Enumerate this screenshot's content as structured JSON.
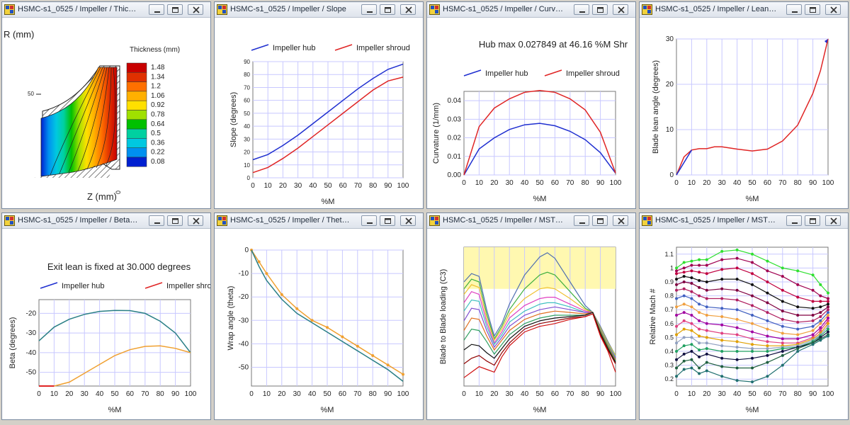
{
  "windows": [
    {
      "title": "HSMC-s1_0525 / Impeller / Thic…"
    },
    {
      "title": "HSMC-s1_0525 / Impeller / Slope"
    },
    {
      "title": "HSMC-s1_0525 / Impeller / Curv…"
    },
    {
      "title": "HSMC-s1_0525 / Impeller / Lean…"
    },
    {
      "title": "HSMC-s1_0525 / Impeller / Beta…"
    },
    {
      "title": "HSMC-s1_0525 / Impeller / Thet…"
    },
    {
      "title": "HSMC-s1_0525 / Impeller / MST…"
    },
    {
      "title": "HSMC-s1_0525 / Impeller / MST…"
    }
  ],
  "window_buttons": [
    "minimize",
    "maximize",
    "close"
  ],
  "icons": {
    "app": "impeller-app-icon",
    "minimize": "minimize-icon",
    "maximize": "maximize-icon",
    "close": "close-icon"
  },
  "colors": {
    "hub": "#1f2fd0",
    "shroud": "#e02525",
    "grid": "#c8c8ff",
    "teal": "#2a7f86",
    "orange": "#f0a030",
    "highlight": "#fff8b0"
  },
  "chart_data": [
    {
      "type": "contour",
      "title": "Thickness (mm)",
      "xlabel": "Z (mm)",
      "ylabel": "R (mm)",
      "xticks": [
        "0"
      ],
      "yticks": [
        "50"
      ],
      "legend": {
        "levels": [
          "1.48",
          "1.34",
          "1.2",
          "1.06",
          "0.92",
          "0.78",
          "0.64",
          "0.5",
          "0.36",
          "0.22",
          "0.08"
        ],
        "colors": [
          "#c80000",
          "#e03000",
          "#ff7000",
          "#ffb000",
          "#ffe000",
          "#a0e000",
          "#00c000",
          "#00d0a0",
          "#00c8e0",
          "#0090f0",
          "#0020d0"
        ]
      }
    },
    {
      "type": "line",
      "title": "",
      "xlabel": "%M",
      "ylabel": "Slope (degrees)",
      "xlim": [
        0,
        100
      ],
      "ylim": [
        0,
        90
      ],
      "xticks": [
        "0",
        "10",
        "20",
        "30",
        "40",
        "50",
        "60",
        "70",
        "80",
        "90",
        "100"
      ],
      "yticks": [
        "0",
        "10",
        "20",
        "30",
        "40",
        "50",
        "60",
        "70",
        "80",
        "90"
      ],
      "x": [
        0,
        10,
        20,
        30,
        40,
        50,
        60,
        70,
        80,
        90,
        100
      ],
      "series": [
        {
          "name": "Impeller hub",
          "values": [
            14,
            18,
            25,
            33,
            42,
            51,
            60,
            69,
            77,
            84,
            88
          ]
        },
        {
          "name": "Impeller shroud",
          "values": [
            4,
            8,
            15,
            23,
            32,
            41,
            50,
            59,
            68,
            75,
            78
          ]
        }
      ]
    },
    {
      "type": "line",
      "title": "Hub max 0.027849 at 46.16 %M  Shr",
      "xlabel": "%M",
      "ylabel": "Curvature (1/mm)",
      "xlim": [
        0,
        100
      ],
      "ylim": [
        0,
        0.045
      ],
      "xticks": [
        "0",
        "10",
        "20",
        "30",
        "40",
        "50",
        "60",
        "70",
        "80",
        "90",
        "100"
      ],
      "yticks": [
        "0.00",
        "0.01",
        "0.02",
        "0.03",
        "0.04"
      ],
      "x": [
        0,
        10,
        20,
        30,
        40,
        50,
        60,
        70,
        80,
        90,
        100
      ],
      "series": [
        {
          "name": "Impeller hub",
          "values": [
            0,
            0.014,
            0.02,
            0.0245,
            0.027,
            0.0278,
            0.0265,
            0.0235,
            0.019,
            0.012,
            0.001
          ]
        },
        {
          "name": "Impeller shroud",
          "values": [
            0,
            0.026,
            0.036,
            0.041,
            0.0445,
            0.0455,
            0.0445,
            0.041,
            0.035,
            0.023,
            0.001
          ]
        }
      ]
    },
    {
      "type": "line",
      "title": "",
      "xlabel": "%M",
      "ylabel": "Blade lean angle (degrees)",
      "xlim": [
        0,
        100
      ],
      "ylim": [
        0,
        30
      ],
      "xticks": [
        "0",
        "10",
        "20",
        "30",
        "40",
        "50",
        "60",
        "70",
        "80",
        "90",
        "100"
      ],
      "yticks": [
        "0",
        "10",
        "20",
        "30"
      ],
      "x": [
        0,
        5,
        10,
        15,
        20,
        25,
        30,
        40,
        50,
        60,
        70,
        80,
        90,
        95,
        100
      ],
      "series": [
        {
          "name": "",
          "values": [
            0,
            4,
            5.5,
            5.8,
            5.8,
            6.2,
            6.2,
            5.7,
            5.3,
            5.7,
            7.5,
            11,
            18,
            23,
            30
          ]
        }
      ]
    },
    {
      "type": "line",
      "title": "Exit lean is fixed at 30.000 degrees",
      "xlabel": "%M",
      "ylabel": "Beta (degrees)",
      "xlim": [
        0,
        100
      ],
      "ylim": [
        -57,
        -13
      ],
      "xticks": [
        "0",
        "10",
        "20",
        "30",
        "40",
        "50",
        "60",
        "70",
        "80",
        "90",
        "100"
      ],
      "yticks": [
        "-20",
        "-30",
        "-40",
        "-50"
      ],
      "x": [
        0,
        10,
        20,
        30,
        40,
        50,
        60,
        70,
        80,
        90,
        100
      ],
      "series": [
        {
          "name": "Impeller hub",
          "values": [
            -34,
            -27,
            -23,
            -20.5,
            -19,
            -18.5,
            -18.6,
            -20,
            -24,
            -30,
            -40
          ]
        },
        {
          "name": "Impeller shroud",
          "values": [
            -57,
            -57,
            -55,
            -50.5,
            -46,
            -41.5,
            -38.5,
            -36.8,
            -36.5,
            -37.8,
            -40
          ]
        }
      ]
    },
    {
      "type": "line",
      "title": "",
      "xlabel": "%M",
      "ylabel": "Wrap angle (theta)",
      "xlim": [
        0,
        100
      ],
      "ylim": [
        -58,
        0
      ],
      "xticks": [
        "0",
        "10",
        "20",
        "30",
        "40",
        "50",
        "60",
        "70",
        "80",
        "90",
        "100"
      ],
      "yticks": [
        "0",
        "-10",
        "-20",
        "-30",
        "-40",
        "-50"
      ],
      "x": [
        0,
        5,
        10,
        20,
        30,
        40,
        50,
        60,
        70,
        80,
        90,
        100
      ],
      "series": [
        {
          "name": "",
          "values": [
            0,
            -7,
            -13,
            -21,
            -27,
            -31,
            -35,
            -39,
            -43,
            -47,
            -51,
            -56
          ]
        },
        {
          "name": "",
          "values": [
            0,
            -5,
            -10,
            -19,
            -25,
            -30,
            -33,
            -37,
            -41,
            -45,
            -49,
            -53
          ]
        }
      ]
    },
    {
      "type": "line",
      "title": "",
      "xlabel": "%M",
      "ylabel": "Blade to Blade loading (C3)",
      "xlim": [
        0,
        100
      ],
      "ylim": [
        0,
        1
      ],
      "xticks": [
        "0",
        "10",
        "20",
        "30",
        "40",
        "50",
        "60",
        "70",
        "80",
        "90",
        "100"
      ],
      "yticks": [],
      "x": [
        0,
        5,
        10,
        15,
        20,
        25,
        30,
        40,
        50,
        55,
        60,
        70,
        80,
        85,
        90,
        95,
        100
      ],
      "series": [
        {
          "name": "",
          "values": [
            0.75,
            0.81,
            0.79,
            0.55,
            0.36,
            0.45,
            0.59,
            0.8,
            0.93,
            0.96,
            0.92,
            0.75,
            0.58,
            0.53,
            0.43,
            0.32,
            0.22
          ]
        },
        {
          "name": "",
          "values": [
            0.7,
            0.77,
            0.75,
            0.52,
            0.34,
            0.43,
            0.55,
            0.7,
            0.8,
            0.82,
            0.8,
            0.68,
            0.56,
            0.53,
            0.42,
            0.31,
            0.22
          ]
        },
        {
          "name": "",
          "values": [
            0.66,
            0.73,
            0.71,
            0.49,
            0.33,
            0.41,
            0.52,
            0.63,
            0.7,
            0.71,
            0.7,
            0.63,
            0.55,
            0.53,
            0.42,
            0.31,
            0.22
          ]
        },
        {
          "name": "",
          "values": [
            0.6,
            0.68,
            0.66,
            0.46,
            0.31,
            0.39,
            0.49,
            0.58,
            0.63,
            0.64,
            0.64,
            0.59,
            0.54,
            0.53,
            0.41,
            0.3,
            0.21
          ]
        },
        {
          "name": "",
          "values": [
            0.54,
            0.62,
            0.61,
            0.43,
            0.3,
            0.37,
            0.46,
            0.54,
            0.59,
            0.6,
            0.6,
            0.57,
            0.53,
            0.53,
            0.41,
            0.3,
            0.21
          ]
        },
        {
          "name": "",
          "values": [
            0.47,
            0.56,
            0.55,
            0.4,
            0.28,
            0.35,
            0.43,
            0.51,
            0.55,
            0.56,
            0.57,
            0.55,
            0.53,
            0.53,
            0.4,
            0.29,
            0.2
          ]
        },
        {
          "name": "",
          "values": [
            0.4,
            0.49,
            0.48,
            0.36,
            0.26,
            0.33,
            0.4,
            0.48,
            0.52,
            0.53,
            0.54,
            0.53,
            0.52,
            0.53,
            0.4,
            0.29,
            0.19
          ]
        },
        {
          "name": "",
          "values": [
            0.33,
            0.41,
            0.4,
            0.32,
            0.23,
            0.3,
            0.37,
            0.45,
            0.49,
            0.5,
            0.51,
            0.51,
            0.51,
            0.53,
            0.39,
            0.28,
            0.18
          ]
        },
        {
          "name": "",
          "values": [
            0.26,
            0.3,
            0.29,
            0.24,
            0.2,
            0.27,
            0.34,
            0.43,
            0.47,
            0.48,
            0.49,
            0.5,
            0.51,
            0.53,
            0.38,
            0.27,
            0.17
          ]
        },
        {
          "name": "",
          "values": [
            0.16,
            0.2,
            0.22,
            0.18,
            0.15,
            0.24,
            0.31,
            0.41,
            0.45,
            0.46,
            0.47,
            0.49,
            0.5,
            0.52,
            0.37,
            0.26,
            0.16
          ]
        },
        {
          "name": "",
          "values": [
            0.06,
            0.1,
            0.14,
            0.12,
            0.1,
            0.21,
            0.29,
            0.39,
            0.43,
            0.44,
            0.45,
            0.48,
            0.5,
            0.52,
            0.36,
            0.25,
            0.1
          ]
        }
      ]
    },
    {
      "type": "line",
      "title": "",
      "xlabel": "%M",
      "ylabel": "Relative Mach #",
      "xlim": [
        0,
        100
      ],
      "ylim": [
        0.15,
        1.15
      ],
      "xticks": [
        "0",
        "10",
        "20",
        "30",
        "40",
        "50",
        "60",
        "70",
        "80",
        "90",
        "100"
      ],
      "yticks": [
        "0.2",
        "0.3",
        "0.4",
        "0.5",
        "0.6",
        "0.7",
        "0.8",
        "0.9",
        "1",
        "1.1"
      ],
      "x": [
        0,
        5,
        10,
        15,
        20,
        30,
        40,
        50,
        60,
        70,
        80,
        90,
        95,
        100
      ],
      "series": [
        {
          "name": "",
          "values": [
            1.0,
            1.04,
            1.05,
            1.06,
            1.06,
            1.12,
            1.13,
            1.1,
            1.05,
            1.0,
            0.98,
            0.95,
            0.88,
            0.82
          ]
        },
        {
          "name": "",
          "values": [
            0.98,
            1.0,
            1.02,
            1.02,
            1.02,
            1.06,
            1.07,
            1.04,
            0.98,
            0.94,
            0.88,
            0.84,
            0.8,
            0.78
          ]
        },
        {
          "name": "",
          "values": [
            0.96,
            0.97,
            0.98,
            0.97,
            0.96,
            0.99,
            1.0,
            0.96,
            0.9,
            0.84,
            0.79,
            0.76,
            0.76,
            0.76
          ]
        },
        {
          "name": "",
          "values": [
            0.92,
            0.94,
            0.93,
            0.91,
            0.9,
            0.92,
            0.92,
            0.88,
            0.82,
            0.76,
            0.72,
            0.71,
            0.72,
            0.74
          ]
        },
        {
          "name": "",
          "values": [
            0.88,
            0.9,
            0.89,
            0.86,
            0.84,
            0.85,
            0.84,
            0.8,
            0.75,
            0.69,
            0.66,
            0.66,
            0.68,
            0.72
          ]
        },
        {
          "name": "",
          "values": [
            0.84,
            0.85,
            0.83,
            0.8,
            0.78,
            0.78,
            0.77,
            0.73,
            0.68,
            0.63,
            0.61,
            0.62,
            0.65,
            0.7
          ]
        },
        {
          "name": "",
          "values": [
            0.78,
            0.8,
            0.78,
            0.74,
            0.72,
            0.71,
            0.7,
            0.66,
            0.62,
            0.58,
            0.56,
            0.58,
            0.62,
            0.68
          ]
        },
        {
          "name": "",
          "values": [
            0.72,
            0.74,
            0.72,
            0.68,
            0.66,
            0.65,
            0.63,
            0.6,
            0.56,
            0.53,
            0.52,
            0.55,
            0.6,
            0.66
          ]
        },
        {
          "name": "",
          "values": [
            0.66,
            0.68,
            0.66,
            0.62,
            0.6,
            0.59,
            0.57,
            0.54,
            0.51,
            0.49,
            0.49,
            0.52,
            0.57,
            0.64
          ]
        },
        {
          "name": "",
          "values": [
            0.58,
            0.62,
            0.6,
            0.56,
            0.55,
            0.53,
            0.52,
            0.49,
            0.47,
            0.46,
            0.46,
            0.5,
            0.55,
            0.62
          ]
        },
        {
          "name": "",
          "values": [
            0.52,
            0.56,
            0.55,
            0.51,
            0.5,
            0.48,
            0.47,
            0.45,
            0.44,
            0.44,
            0.45,
            0.49,
            0.53,
            0.6
          ]
        },
        {
          "name": "",
          "values": [
            0.46,
            0.5,
            0.5,
            0.46,
            0.46,
            0.44,
            0.43,
            0.42,
            0.42,
            0.43,
            0.44,
            0.48,
            0.52,
            0.58
          ]
        },
        {
          "name": "",
          "values": [
            0.4,
            0.44,
            0.45,
            0.41,
            0.42,
            0.4,
            0.4,
            0.4,
            0.4,
            0.42,
            0.43,
            0.47,
            0.51,
            0.56
          ]
        },
        {
          "name": "",
          "values": [
            0.34,
            0.38,
            0.4,
            0.36,
            0.38,
            0.35,
            0.34,
            0.35,
            0.37,
            0.4,
            0.43,
            0.46,
            0.5,
            0.54
          ]
        },
        {
          "name": "",
          "values": [
            0.28,
            0.33,
            0.34,
            0.28,
            0.32,
            0.29,
            0.28,
            0.28,
            0.32,
            0.37,
            0.42,
            0.46,
            0.49,
            0.52
          ]
        },
        {
          "name": "",
          "values": [
            0.22,
            0.27,
            0.28,
            0.24,
            0.26,
            0.22,
            0.19,
            0.18,
            0.22,
            0.3,
            0.4,
            0.45,
            0.48,
            0.51
          ]
        }
      ]
    }
  ]
}
